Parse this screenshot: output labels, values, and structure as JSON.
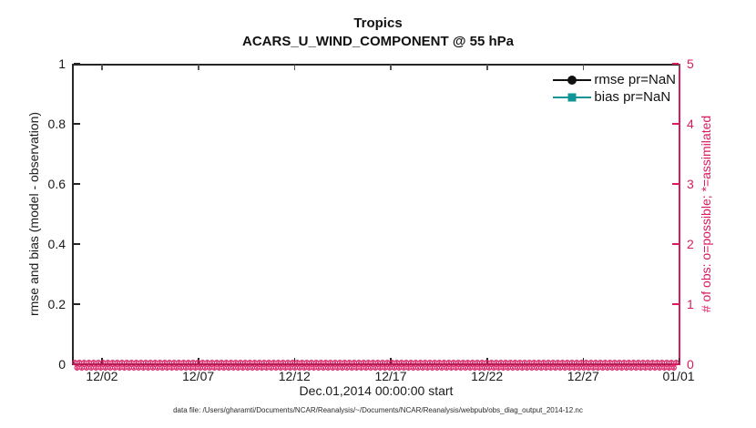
{
  "title": {
    "line1": "Tropics",
    "line2": "ACARS_U_WIND_COMPONENT @ 55 hPa"
  },
  "legend": {
    "rmse": {
      "label": "rmse pr=NaN",
      "marker": "filled-circle",
      "color": "#111111"
    },
    "bias": {
      "label": "bias pr=NaN",
      "marker": "filled-square",
      "color": "#0F9595"
    }
  },
  "axes": {
    "left": {
      "label": "rmse and bias (model - observation)",
      "ticks": [
        "0",
        "0.2",
        "0.4",
        "0.6",
        "0.8",
        "1"
      ],
      "range": [
        0,
        1
      ],
      "color": "#1a1a1a"
    },
    "right": {
      "label": "# of obs: o=possible; *=assimilated",
      "ticks": [
        "0",
        "1",
        "2",
        "3",
        "4",
        "5"
      ],
      "range": [
        0,
        5
      ],
      "color": "#D81B60"
    },
    "x": {
      "label": "Dec.01,2014 00:00:00 start",
      "ticks": [
        "12/02",
        "12/07",
        "12/12",
        "12/17",
        "12/22",
        "12/27",
        "01/01"
      ]
    }
  },
  "caption": "data file: /Users/gharamti/Documents/NCAR/Reanalysis/~/Documents/NCAR/Reanalysis/webpub/obs_diag_output_2014-12.nc",
  "colors": {
    "obs_magenta": "#D81B60",
    "bias_teal": "#0F9595",
    "rmse_black": "#111111",
    "axis_gray": "#262626"
  },
  "chart_data": {
    "type": "line",
    "title": "Tropics — ACARS_U_WIND_COMPONENT @ 55 hPa",
    "xlabel": "Dec.01,2014 00:00:00 start",
    "x_ticks": [
      "12/02",
      "12/07",
      "12/12",
      "12/17",
      "12/22",
      "12/27",
      "01/01"
    ],
    "left_axis": {
      "label": "rmse and bias (model - observation)",
      "range": [
        0,
        1
      ],
      "grid": false
    },
    "right_axis": {
      "label": "# of obs: o=possible; *=assimilated",
      "range": [
        0,
        5
      ],
      "grid": false
    },
    "legend_position": "top-right-inside-no-box",
    "series": [
      {
        "name": "rmse pr=NaN",
        "axis": "left",
        "values_note": "all NaN — no curve drawn"
      },
      {
        "name": "bias pr=NaN",
        "axis": "left",
        "values_note": "all NaN — no curve drawn"
      },
      {
        "name": "# of obs possible (o markers)",
        "axis": "right",
        "constant_value": 0,
        "note": "dense o markers along y=0 for every time bin Dec 01 2014 – Jan 01 2015"
      },
      {
        "name": "# of obs assimilated (* markers)",
        "axis": "right",
        "constant_value": 0,
        "note": "dense * markers along y=0 for every time bin Dec 01 2014 – Jan 01 2015"
      }
    ]
  }
}
